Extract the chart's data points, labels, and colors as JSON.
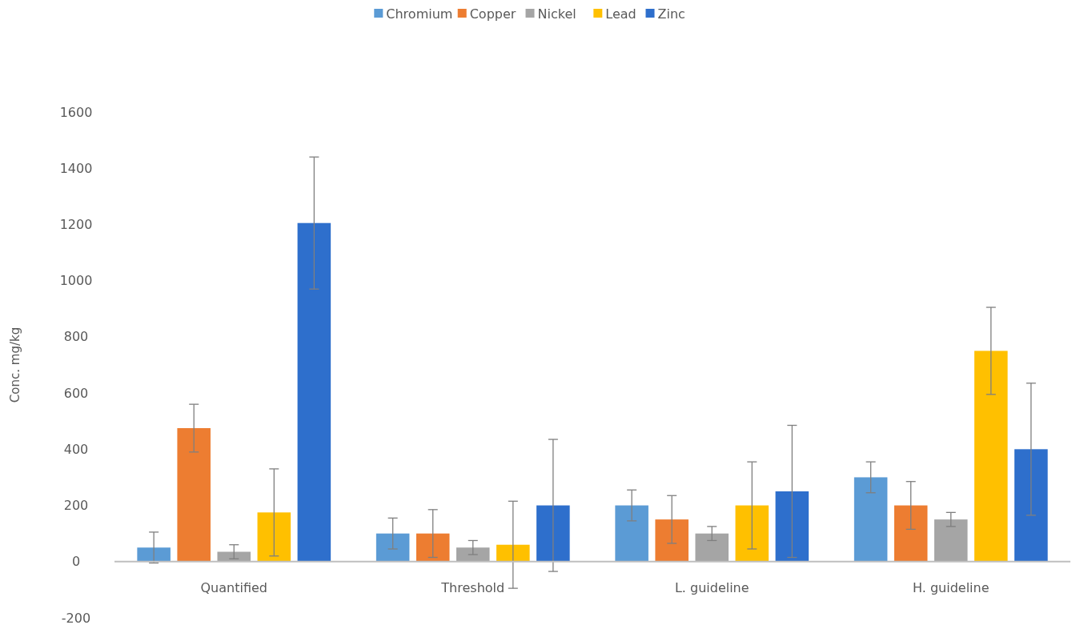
{
  "chart_data": {
    "type": "bar",
    "ylabel": "Conc. mg/kg",
    "categories": [
      "Quantified",
      "Threshold",
      "L. guideline",
      "H. guideline"
    ],
    "series": [
      {
        "name": "Chromium",
        "color": "#5b9bd5",
        "values": [
          50,
          100,
          200,
          300
        ],
        "errors": [
          55,
          55,
          55,
          55
        ]
      },
      {
        "name": "Copper",
        "color": "#ed7d31",
        "values": [
          475,
          100,
          150,
          200
        ],
        "errors": [
          85,
          85,
          85,
          85
        ]
      },
      {
        "name": "Nickel",
        "color": "#a5a5a5",
        "values": [
          35,
          50,
          100,
          150
        ],
        "errors": [
          25,
          25,
          25,
          25
        ]
      },
      {
        "name": "Lead",
        "color": "#ffc000",
        "values": [
          175,
          60,
          200,
          750
        ],
        "errors": [
          155,
          155,
          155,
          155
        ]
      },
      {
        "name": "Zinc",
        "color": "#2e6fcc",
        "values": [
          1205,
          200,
          250,
          400
        ],
        "errors": [
          235,
          235,
          235,
          235
        ]
      }
    ],
    "ylim": [
      -200,
      1600
    ],
    "yticks": [
      -200,
      0,
      200,
      400,
      600,
      800,
      1000,
      1200,
      1400,
      1600
    ],
    "grid": false,
    "legend": "top"
  }
}
